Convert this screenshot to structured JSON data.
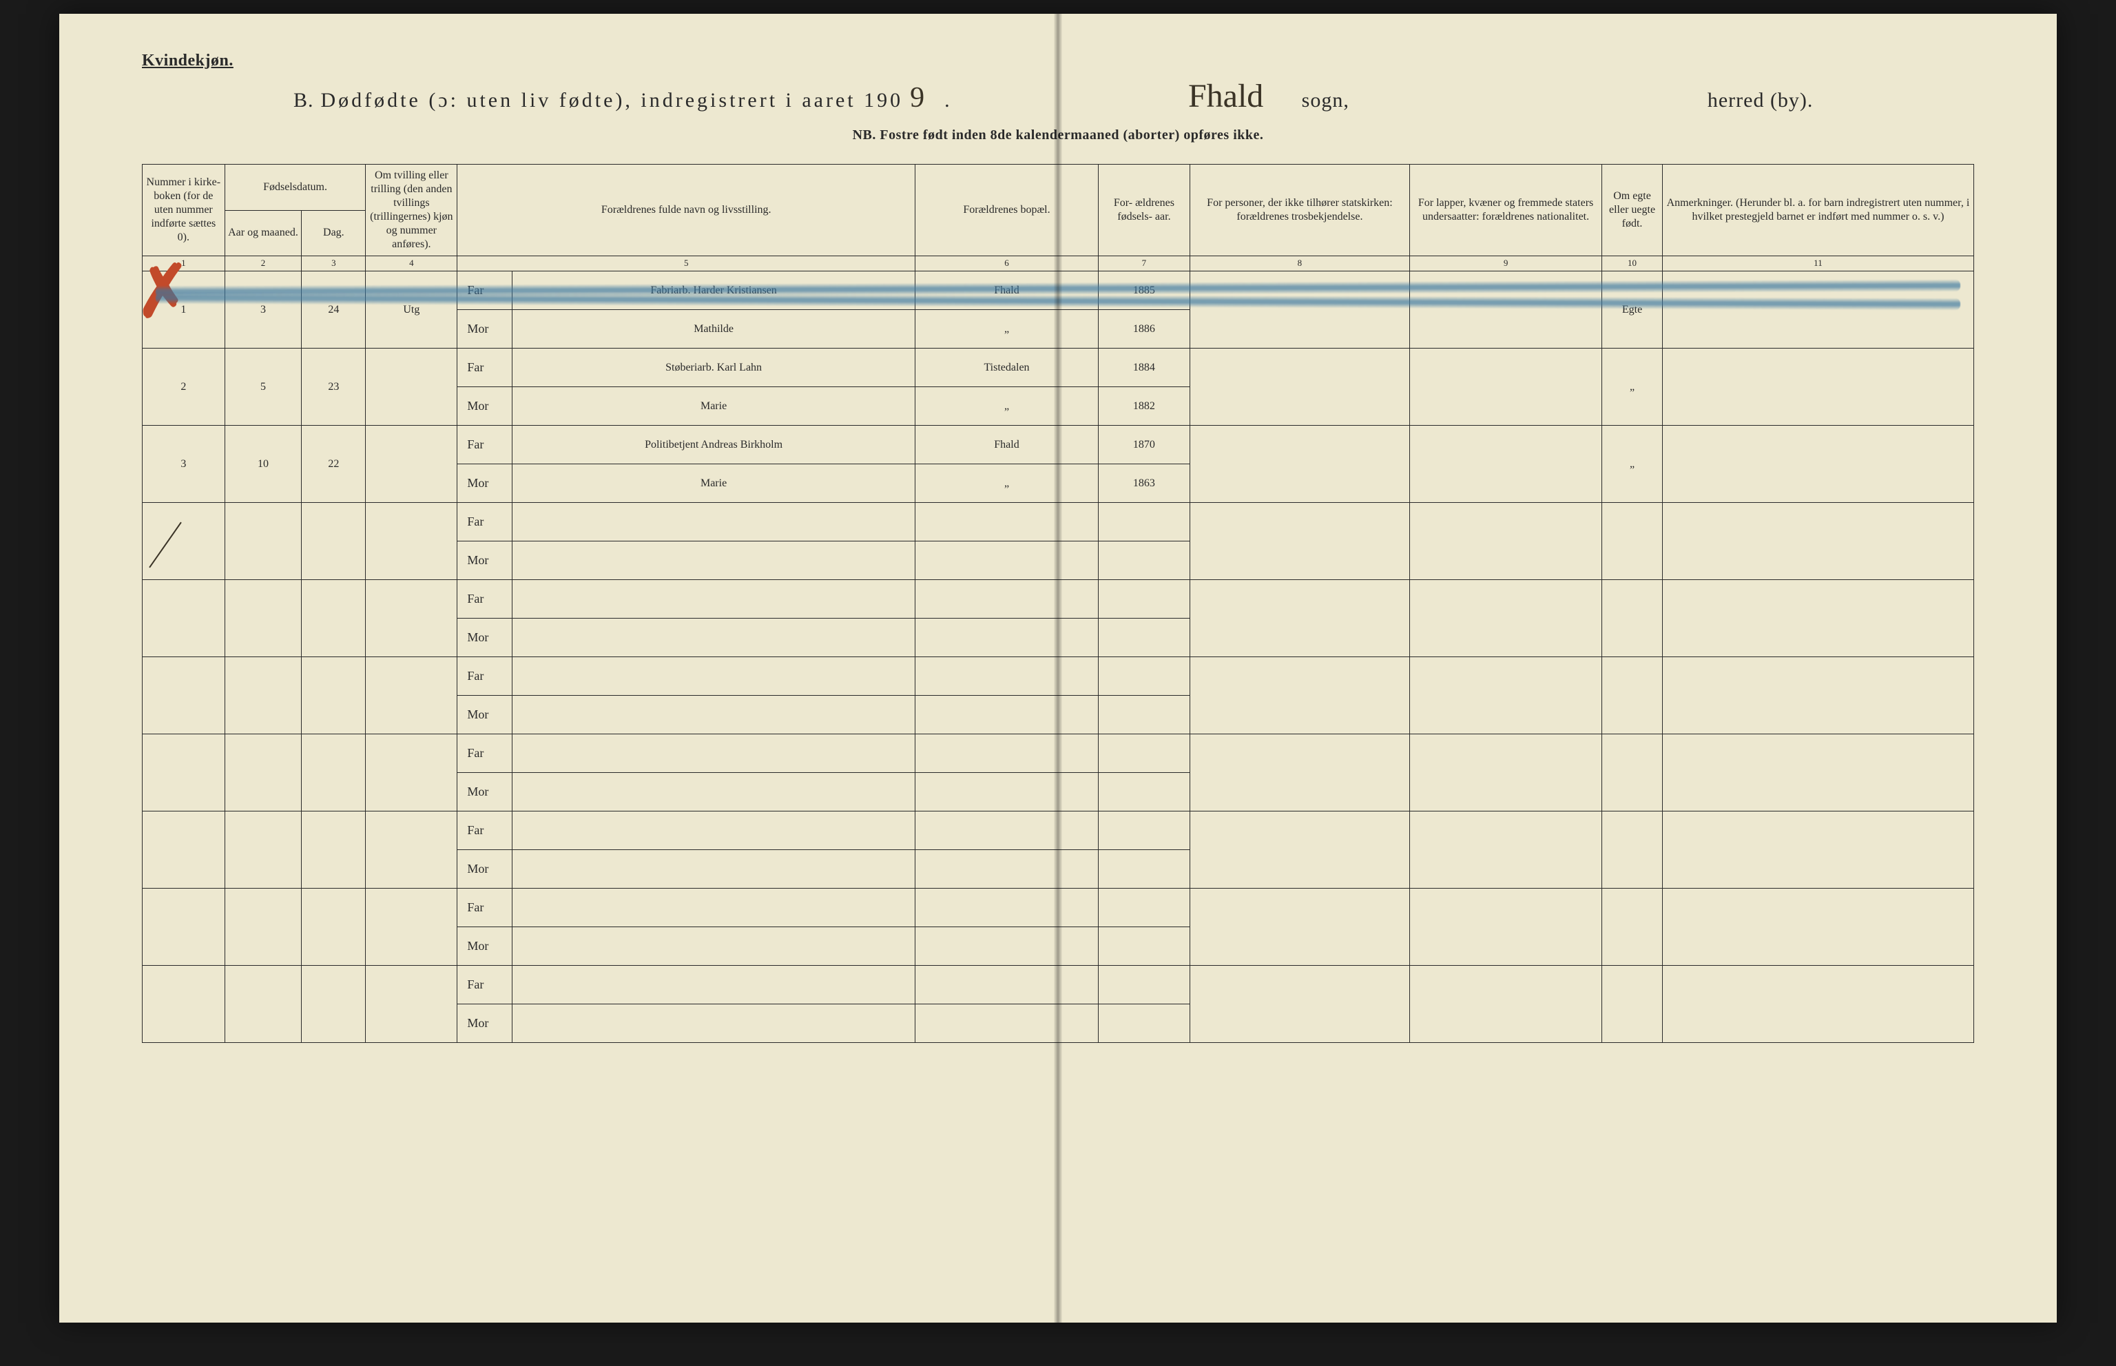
{
  "page": {
    "gender_heading": "Kvindekjøn.",
    "title_prefix": "B.",
    "title_main": "Dødfødte (ɔ: uten liv fødte), indregistrert i aaret 190",
    "year_suffix_hand": "9",
    "period": ".",
    "sogn_hand": "Fhald",
    "sogn_label": "sogn,",
    "herred_label": "herred (by).",
    "nb_note": "NB. Fostre født inden 8de kalendermaaned (aborter) opføres ikke."
  },
  "headers": {
    "c1": "Nummer i kirke- boken (for de uten nummer indførte sættes 0).",
    "c_fodsel": "Fødselsdatum.",
    "c2": "Aar og maaned.",
    "c3": "Dag.",
    "c4": "Om tvilling eller trilling (den anden tvillings (trillingernes) kjøn og nummer anføres).",
    "c5": "Forældrenes fulde navn og livsstilling.",
    "c6": "Forældrenes bopæl.",
    "c7": "For- ældrenes fødsels- aar.",
    "c8": "For personer, der ikke tilhører statskirken: forældrenes trosbekjendelse.",
    "c9": "For lapper, kvæner og fremmede staters undersaatter: forældrenes nationalitet.",
    "c10": "Om egte eller uegte født.",
    "c11": "Anmerkninger. (Herunder bl. a. for barn indregistrert uten nummer, i hvilket prestegjeld barnet er indført med nummer o. s. v.)",
    "nums": [
      "1",
      "2",
      "3",
      "4",
      "5",
      "6",
      "7",
      "8",
      "9",
      "10",
      "11"
    ]
  },
  "labels": {
    "far": "Far",
    "mor": "Mor"
  },
  "rows": [
    {
      "struck": true,
      "num": "1",
      "aar_mnd": "3",
      "dag": "24",
      "tvilling": "Utg",
      "far_name": "Fabriarb. Harder Kristiansen",
      "far_bopal": "Fhald",
      "far_aar": "1885",
      "mor_name": "Mathilde",
      "mor_bopal": "„",
      "mor_aar": "1886",
      "egte": "Egte"
    },
    {
      "num": "2",
      "aar_mnd": "5",
      "dag": "23",
      "far_name": "Støberiarb. Karl Lahn",
      "far_bopal": "Tistedalen",
      "far_aar": "1884",
      "mor_name": "Marie",
      "mor_bopal": "„",
      "mor_aar": "1882",
      "egte": "„"
    },
    {
      "num": "3",
      "aar_mnd": "10",
      "dag": "22",
      "far_name": "Politibetjent Andreas Birkholm",
      "far_bopal": "Fhald",
      "far_aar": "1870",
      "mor_name": "Marie",
      "mor_bopal": "„",
      "mor_aar": "1863",
      "egte": "„"
    }
  ],
  "empty_row_count": 7,
  "colors": {
    "paper": "#ede8d0",
    "ink": "#2a2a2a",
    "hand_ink": "#3a3326",
    "blue_crayon": "#3a76a0",
    "red_crayon": "#c24a2a"
  }
}
